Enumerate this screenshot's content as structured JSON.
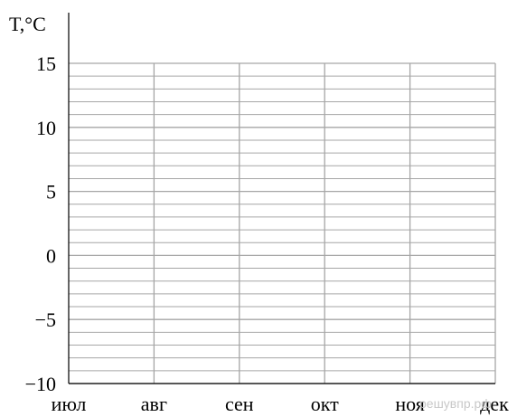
{
  "chart_data": {
    "type": "line",
    "title": "",
    "xlabel": "",
    "ylabel": "T,°C",
    "categories": [
      "июл",
      "авг",
      "сен",
      "окт",
      "ноя",
      "дек"
    ],
    "y_ticks": [
      15,
      10,
      5,
      0,
      -5,
      -10
    ],
    "y_tick_labels": [
      "15",
      "10",
      "5",
      "0",
      "−5",
      "−10"
    ],
    "ylim": [
      -10,
      15
    ],
    "minor_step": 1,
    "grid": true,
    "series": []
  },
  "watermark": "решувпр.рф",
  "colors": {
    "grid": "#a6a6a6",
    "axis": "#000000",
    "text": "#000000",
    "watermark": "#c8c8c8"
  }
}
